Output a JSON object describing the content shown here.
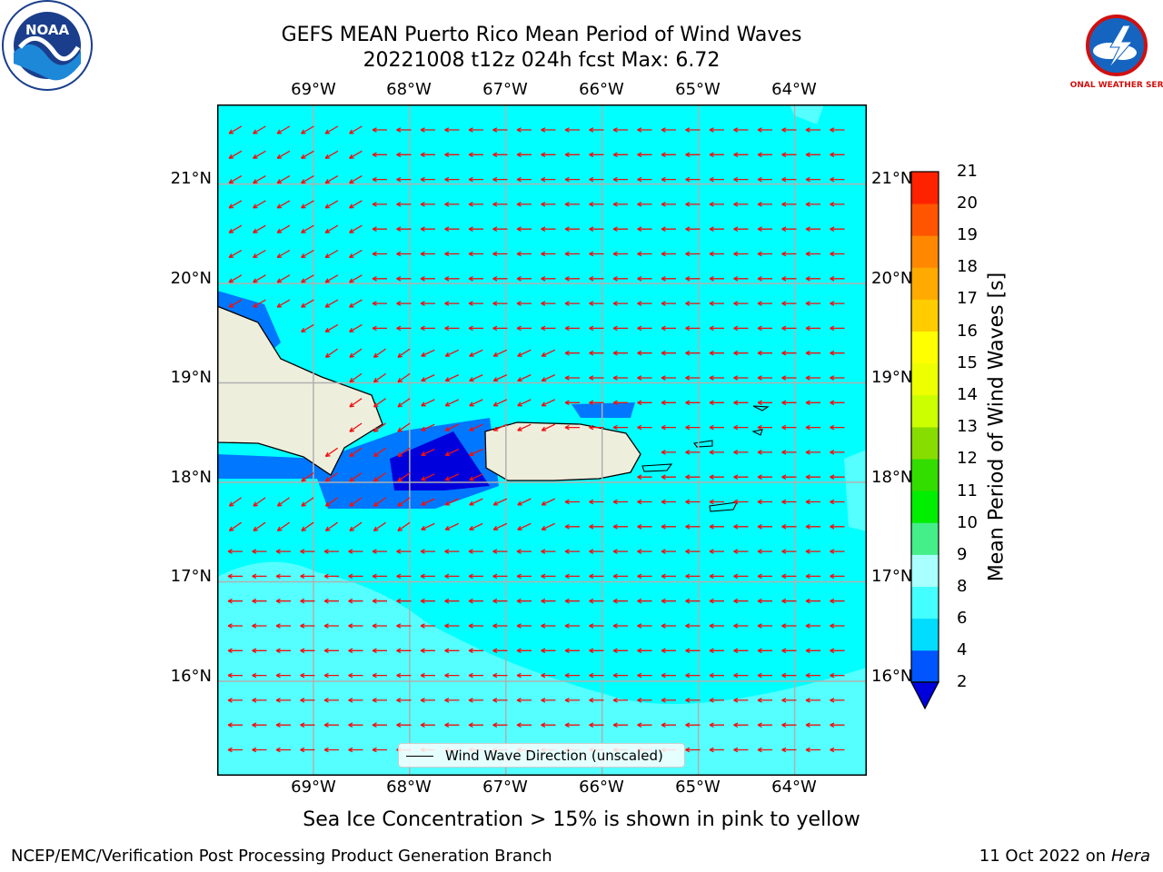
{
  "title": {
    "line1": "GEFS MEAN Puerto Rico Mean Period of Wind Waves",
    "line2": "20221008 t12z 024h fcst   Max: 6.72"
  },
  "logos": {
    "left": {
      "text": "NOAA",
      "icon": "noaa-logo-icon"
    },
    "right": {
      "text": "NATIONAL WEATHER SERVICE",
      "icon": "nws-logo-icon"
    }
  },
  "map": {
    "lon_ticks_top": [
      "69°W",
      "68°W",
      "67°W",
      "66°W",
      "65°W",
      "64°W"
    ],
    "lon_ticks_bottom": [
      "69°W",
      "68°W",
      "67°W",
      "66°W",
      "65°W",
      "64°W"
    ],
    "lat_ticks_left": [
      "21°N",
      "20°N",
      "19°N",
      "18°N",
      "17°N",
      "16°N"
    ],
    "lat_ticks_right": [
      "21°N",
      "20°N",
      "19°N",
      "18°N",
      "17°N",
      "16°N"
    ],
    "extent": {
      "lon": [
        -70.0,
        -63.25
      ],
      "lat": [
        15.05,
        21.8
      ]
    },
    "grid": true,
    "vector_color": "#ee1111",
    "land_color": "#eeeedd",
    "legend_label": "Wind Wave Direction (unscaled)"
  },
  "colorbar": {
    "title": "Mean Period of Wind Waves [s]",
    "levels": [
      "2",
      "4",
      "6",
      "8",
      "9",
      "10",
      "11",
      "12",
      "13",
      "14",
      "15",
      "16",
      "17",
      "18",
      "19",
      "20",
      "21"
    ],
    "colors": [
      "#0055ff",
      "#00ddff",
      "#44ffff",
      "#aaffff",
      "#44ee88",
      "#00ee00",
      "#33dd00",
      "#88dd00",
      "#ccff00",
      "#eeff00",
      "#ffff00",
      "#ffcc00",
      "#ffaa00",
      "#ff8800",
      "#ff5500",
      "#ff2200",
      "#ff0000"
    ],
    "under_color": "#0000dd"
  },
  "subnote": "Sea Ice Concentration > 15% is shown in pink to yellow",
  "footer": {
    "left": "NCEP/EMC/Verification Post Processing Product Generation Branch",
    "right_date": "11 Oct 2022 on",
    "right_host": "Hera"
  }
}
